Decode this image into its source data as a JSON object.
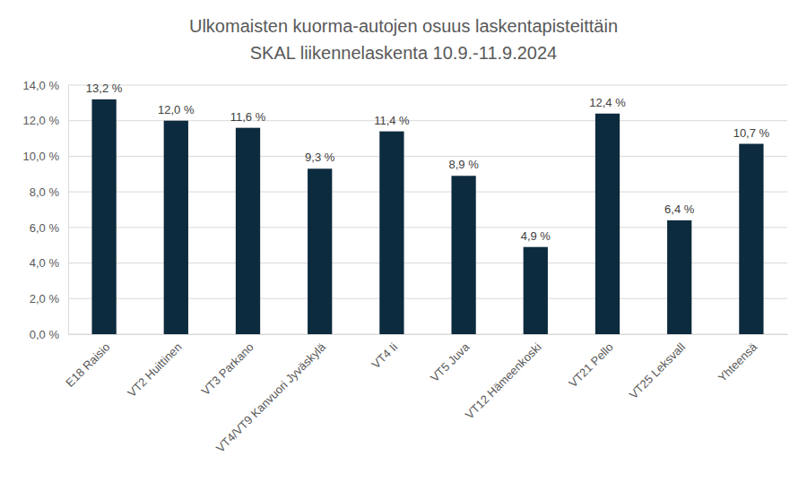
{
  "chart_data": {
    "type": "bar",
    "title": "Ulkomaisten kuorma-autojen osuus laskentapisteittäin",
    "subtitle": "SKAL liikennelaskenta 10.9.-11.9.2024",
    "categories": [
      "E18 Raisio",
      "VT2 Huittinen",
      "VT3 Parkano",
      "VT4/VT9 Kanvuori Jyväskylä",
      "VT4 Ii",
      "VT5 Juva",
      "VT12 Hämeenkoski",
      "VT21 Pello",
      "VT25 Leksvall",
      "Yhteensä"
    ],
    "values": [
      13.2,
      12.0,
      11.6,
      9.3,
      11.4,
      8.9,
      4.9,
      12.4,
      6.4,
      10.7
    ],
    "value_labels": [
      "13,2 %",
      "12,0 %",
      "11,6 %",
      "9,3 %",
      "11,4 %",
      "8,9 %",
      "4,9 %",
      "12,4 %",
      "6,4 %",
      "10,7 %"
    ],
    "color": "#0d2b3e",
    "ylim": [
      0,
      14
    ],
    "yticks": [
      {
        "value": 0,
        "label": "0,0 %"
      },
      {
        "value": 2,
        "label": "2,0 %"
      },
      {
        "value": 4,
        "label": "4,0 %"
      },
      {
        "value": 6,
        "label": "6,0 %"
      },
      {
        "value": 8,
        "label": "8,0 %"
      },
      {
        "value": 10,
        "label": "10,0 %"
      },
      {
        "value": 12,
        "label": "12,0 %"
      },
      {
        "value": 14,
        "label": "14,0 %"
      }
    ],
    "grid": true,
    "data_labels": true
  }
}
